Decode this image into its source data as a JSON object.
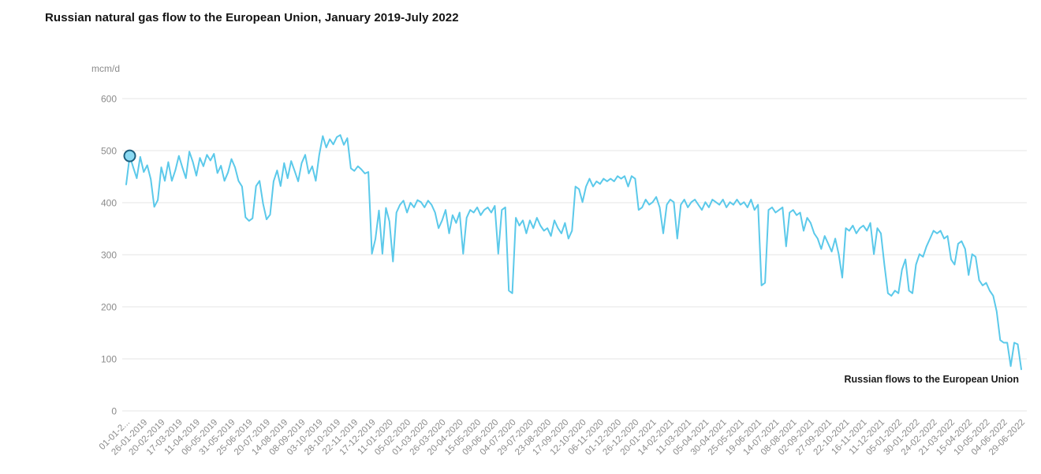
{
  "page": {
    "title": "Russian natural gas flow to the European Union, January 2019-July 2022"
  },
  "chart_data": {
    "type": "line",
    "title": "Russian natural gas flow to the European Union, January 2019-July 2022",
    "xlabel": "",
    "ylabel": "mcm/d",
    "ylim": [
      0,
      600
    ],
    "y_ticks": [
      0,
      100,
      200,
      300,
      400,
      500,
      600
    ],
    "grid": "horizontal",
    "legend_position": "inline-bottom-right",
    "x_tick_labels": [
      "01-01-2...",
      "26-01-2019",
      "20-02-2019",
      "17-03-2019",
      "11-04-2019",
      "06-05-2019",
      "31-05-2019",
      "25-06-2019",
      "20-07-2019",
      "14-08-2019",
      "08-09-2019",
      "03-10-2019",
      "28-10-2019",
      "22-11-2019",
      "17-12-2019",
      "11-01-2020",
      "05-02-2020",
      "01-03-2020",
      "26-03-2020",
      "20-04-2020",
      "15-05-2020",
      "09-06-2020",
      "04-07-2020",
      "29-07-2020",
      "23-08-2020",
      "17-09-2020",
      "12-10-2020",
      "06-11-2020",
      "01-12-2020",
      "26-12-2020",
      "20-01-2021",
      "14-02-2021",
      "11-03-2021",
      "05-04-2021",
      "30-04-2021",
      "25-05-2021",
      "19-06-2021",
      "14-07-2021",
      "08-08-2021",
      "02-09-2021",
      "27-09-2021",
      "22-10-2021",
      "16-11-2021",
      "11-12-2021",
      "05-01-2022",
      "30-01-2022",
      "24-02-2022",
      "21-03-2022",
      "15-04-2022",
      "10-05-2022",
      "04-06-2022",
      "29-06-2022"
    ],
    "series": [
      {
        "name": "Russian flows to the European Union",
        "color": "#5BC9EA",
        "sampling": "approx. every 5 days, values in mcm/d, estimated from plot",
        "values": [
          435,
          490,
          468,
          447,
          488,
          459,
          472,
          445,
          392,
          405,
          468,
          442,
          478,
          442,
          462,
          490,
          468,
          447,
          498,
          478,
          452,
          486,
          470,
          492,
          481,
          494,
          457,
          471,
          442,
          458,
          484,
          468,
          442,
          431,
          372,
          365,
          370,
          432,
          442,
          398,
          368,
          377,
          441,
          462,
          432,
          476,
          447,
          480,
          461,
          441,
          476,
          492,
          456,
          470,
          442,
          492,
          528,
          506,
          522,
          512,
          526,
          530,
          511,
          524,
          466,
          461,
          470,
          464,
          456,
          459,
          302,
          330,
          385,
          302,
          390,
          364,
          287,
          381,
          396,
          404,
          381,
          400,
          391,
          405,
          401,
          391,
          404,
          396,
          381,
          351,
          366,
          386,
          341,
          376,
          361,
          381,
          302,
          371,
          386,
          381,
          391,
          376,
          386,
          391,
          381,
          394,
          302,
          386,
          391,
          231,
          226,
          371,
          356,
          366,
          341,
          366,
          351,
          371,
          356,
          346,
          351,
          336,
          366,
          351,
          341,
          361,
          331,
          346,
          431,
          426,
          401,
          431,
          446,
          431,
          441,
          436,
          446,
          441,
          446,
          441,
          451,
          446,
          451,
          431,
          451,
          446,
          386,
          391,
          406,
          396,
          401,
          411,
          391,
          341,
          396,
          406,
          401,
          331,
          396,
          406,
          391,
          401,
          406,
          396,
          386,
          401,
          391,
          406,
          401,
          396,
          406,
          391,
          401,
          396,
          406,
          396,
          401,
          391,
          406,
          386,
          396,
          241,
          246,
          386,
          391,
          381,
          386,
          391,
          316,
          381,
          386,
          376,
          381,
          346,
          371,
          361,
          341,
          331,
          311,
          336,
          321,
          306,
          331,
          301,
          256,
          351,
          346,
          356,
          341,
          351,
          356,
          346,
          361,
          301,
          351,
          341,
          281,
          226,
          221,
          231,
          226,
          271,
          291,
          231,
          226,
          281,
          301,
          296,
          316,
          331,
          346,
          341,
          346,
          331,
          336,
          291,
          281,
          321,
          326,
          311,
          261,
          301,
          296,
          251,
          241,
          246,
          231,
          221,
          191,
          136,
          131,
          131,
          86,
          131,
          128,
          80
        ]
      }
    ],
    "marker": {
      "point_index": 1,
      "value": 490,
      "fill": "#8AD9F2",
      "stroke": "#1B5E7D"
    }
  },
  "colors": {
    "background": "#ffffff",
    "grid": "#e6e6e6",
    "axis_text": "#8b8b8b",
    "title_text": "#141414",
    "line": "#5BC9EA",
    "series_label_text": "#1a1a1a"
  }
}
